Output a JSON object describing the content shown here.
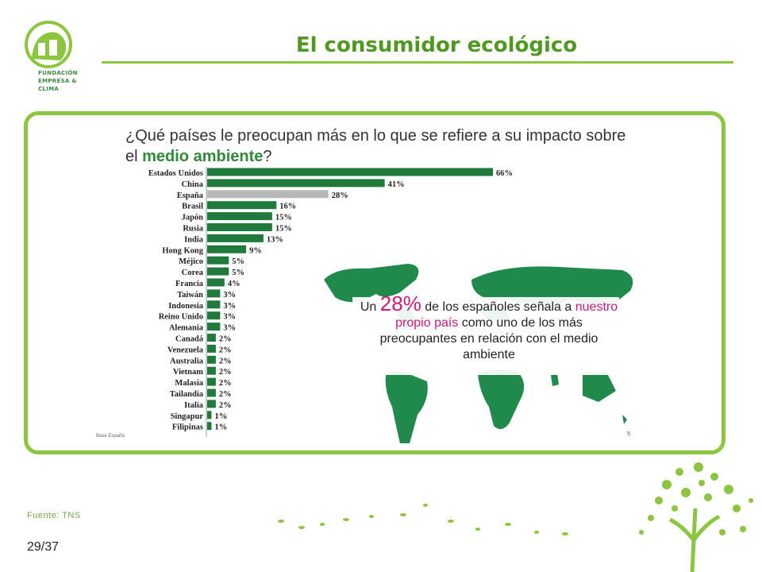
{
  "logo": {
    "line1": "FUNDACIÓN",
    "line2": "EMPRESA &",
    "line3": "CLIMA"
  },
  "title": "El consumidor ecológico",
  "question": {
    "part1": "¿Qué países le preocupan más en lo que se refiere a su impacto sobre el ",
    "highlight": "medio ambiente",
    "part2": "?"
  },
  "callout": {
    "pre": "Un ",
    "big": "28%",
    "mid": " de los españoles señala a ",
    "pink": "nuestro propio país",
    "post": " como uno de los más preocupantes en relación con el medio ambiente"
  },
  "base_label": "Base España",
  "page_ref": "5",
  "source": "Fuente: TNS",
  "page_number": "29/37",
  "colors": {
    "accent": "#8cc63f",
    "bar": "#1f7a3c",
    "bar_highlight": "#b7b7b7",
    "pink": "#d6177a"
  },
  "chart_data": {
    "type": "bar",
    "orientation": "horizontal",
    "categories": [
      "Estados Unidos",
      "China",
      "España",
      "Brasil",
      "Japón",
      "Rusia",
      "India",
      "Hong Kong",
      "Méjico",
      "Corea",
      "Francia",
      "Taiwán",
      "Indonesia",
      "Reino Unido",
      "Alemania",
      "Canadá",
      "Venezuela",
      "Australia",
      "Vietnam",
      "Malasia",
      "Tailandia",
      "Italia",
      "Singapur",
      "Filipinas"
    ],
    "values": [
      66,
      41,
      28,
      16,
      15,
      15,
      13,
      9,
      5,
      5,
      4,
      3,
      3,
      3,
      3,
      2,
      2,
      2,
      2,
      2,
      2,
      2,
      1,
      1
    ],
    "labels": [
      "66%",
      "41%",
      "28%",
      "16%",
      "15%",
      "15%",
      "13%",
      "9%",
      "5%",
      "5%",
      "4%",
      "3%",
      "3%",
      "3%",
      "3%",
      "2%",
      "2%",
      "2%",
      "2%",
      "2%",
      "2%",
      "2%",
      "1%",
      "1%"
    ],
    "highlight_category": "España",
    "xlim": [
      0,
      66
    ]
  }
}
